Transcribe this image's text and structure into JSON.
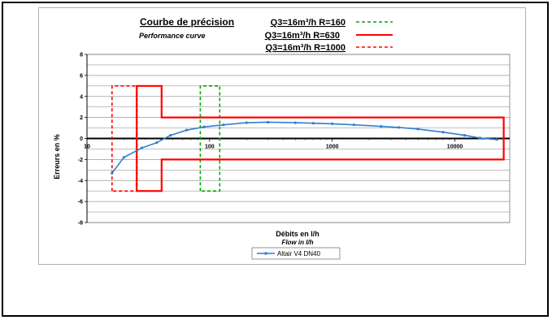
{
  "chart_data": {
    "type": "line",
    "title": "Courbe de précision",
    "subtitle": "Performance curve",
    "xlabel": "Débits en l/h",
    "xlabel_en": "Flow in l/h",
    "ylabel": "Erreurs en %",
    "x_scale": "log",
    "xlim": [
      10,
      28000
    ],
    "ylim": [
      -8,
      8
    ],
    "y_ticks": [
      -8,
      -6,
      -4,
      -2,
      0,
      2,
      4,
      6,
      8
    ],
    "x_ticks": [
      10,
      100,
      1000,
      10000
    ],
    "x_tick_labels": [
      "10",
      "100",
      "1000",
      "10000"
    ],
    "grid": true,
    "envelopes": [
      {
        "name": "Q3=16m³/h R=160",
        "color": "#00aa00",
        "style": "dashed",
        "points": [
          [
            84,
            -5
          ],
          [
            84,
            -2
          ],
          [
            84,
            2
          ],
          [
            84,
            5
          ],
          [
            121,
            5
          ],
          [
            121,
            2
          ],
          [
            121,
            -2
          ],
          [
            121,
            -5
          ],
          [
            84,
            -5
          ]
        ]
      },
      {
        "name": "Q3=16m³/h R=630",
        "color": "#ff0000",
        "style": "solid",
        "points": [
          [
            25.4,
            0
          ],
          [
            25.4,
            5
          ],
          [
            40.6,
            5
          ],
          [
            40.6,
            2
          ],
          [
            25000,
            2
          ],
          [
            25000,
            -2
          ],
          [
            40.6,
            -2
          ],
          [
            40.6,
            -5
          ],
          [
            25.4,
            -5
          ],
          [
            25.4,
            0
          ]
        ]
      },
      {
        "name": "Q3=16m³/h R=1000",
        "color": "#ff0000",
        "style": "dashed",
        "points": [
          [
            16,
            -5
          ],
          [
            16,
            5
          ],
          [
            25.6,
            5
          ],
          [
            25.6,
            2
          ],
          [
            25.6,
            -2
          ],
          [
            25.6,
            -5
          ],
          [
            16,
            -5
          ]
        ]
      }
    ],
    "series": [
      {
        "name": "Altair V4 DN40",
        "color": "#2f7fd0",
        "points": [
          [
            16,
            -3.3
          ],
          [
            20,
            -1.8
          ],
          [
            28,
            -0.9
          ],
          [
            37,
            -0.4
          ],
          [
            48,
            0.3
          ],
          [
            65,
            0.8
          ],
          [
            90,
            1.1
          ],
          [
            130,
            1.3
          ],
          [
            200,
            1.5
          ],
          [
            300,
            1.55
          ],
          [
            500,
            1.5
          ],
          [
            700,
            1.45
          ],
          [
            1000,
            1.4
          ],
          [
            1500,
            1.3
          ],
          [
            2500,
            1.15
          ],
          [
            3500,
            1.05
          ],
          [
            5000,
            0.9
          ],
          [
            8000,
            0.6
          ],
          [
            12000,
            0.3
          ],
          [
            16000,
            0.05
          ],
          [
            22000,
            -0.1
          ]
        ]
      }
    ],
    "legend": {
      "position": "bottom",
      "entries": [
        "Altair V4 DN40"
      ]
    }
  }
}
